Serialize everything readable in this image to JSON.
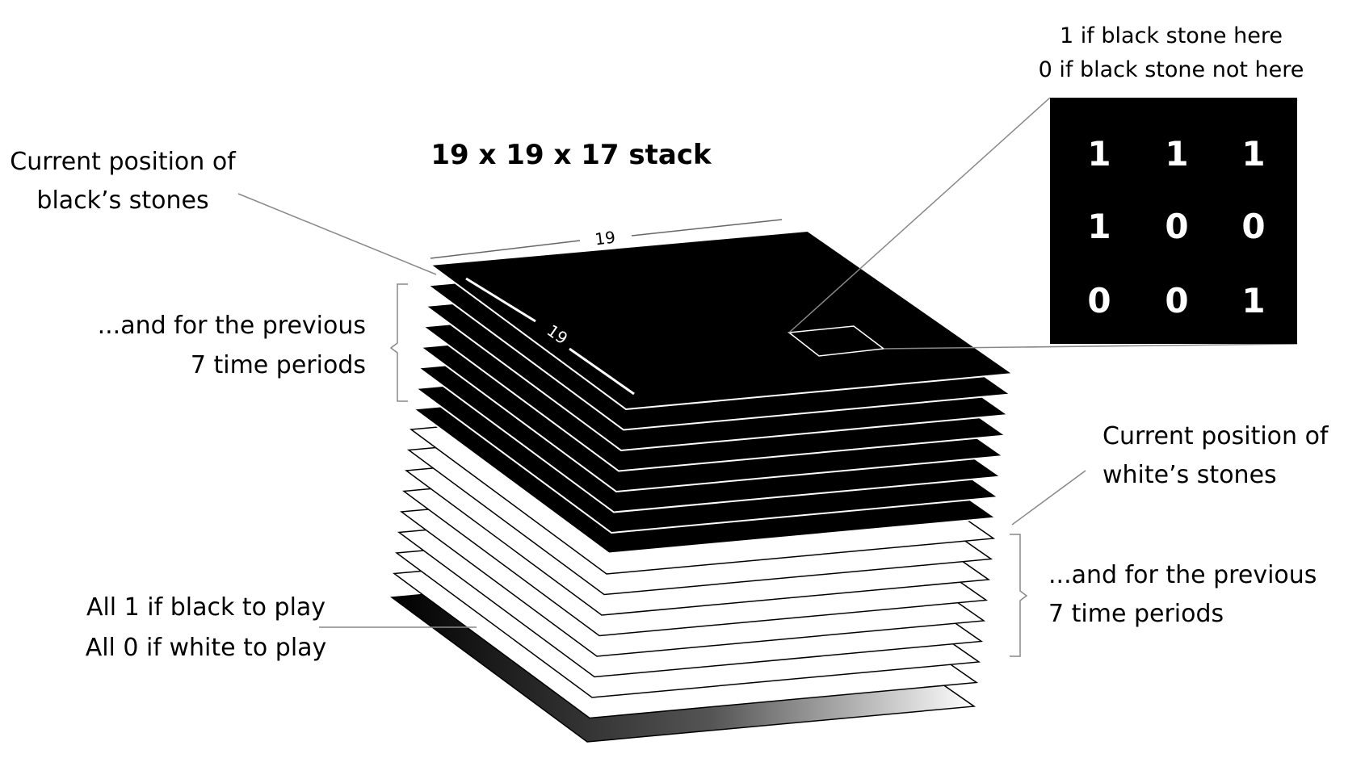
{
  "title": "19 x 19 x 17 stack",
  "dims": {
    "width": "19",
    "depth": "19"
  },
  "labels": {
    "black_current": [
      "Current position of",
      "black’s stones"
    ],
    "black_previous": [
      "...and for the previous",
      "7 time periods"
    ],
    "white_current": [
      "Current position of",
      "white’s stones"
    ],
    "white_previous": [
      "...and for the previous",
      "7 time periods"
    ],
    "color_plane": [
      "All 1 if black to play",
      "All 0 if white to play"
    ],
    "cell_meaning": [
      "1 if black stone here",
      "0 if black stone not here"
    ]
  },
  "matrix": [
    [
      "1",
      "1",
      "1"
    ],
    [
      "1",
      "0",
      "0"
    ],
    [
      "0",
      "0",
      "1"
    ]
  ],
  "stack": {
    "black_planes": 8,
    "white_planes": 8,
    "color_planes": 1
  },
  "colors": {
    "black_plane": "#000000",
    "white_plane": "#ffffff",
    "line": "#888888"
  }
}
